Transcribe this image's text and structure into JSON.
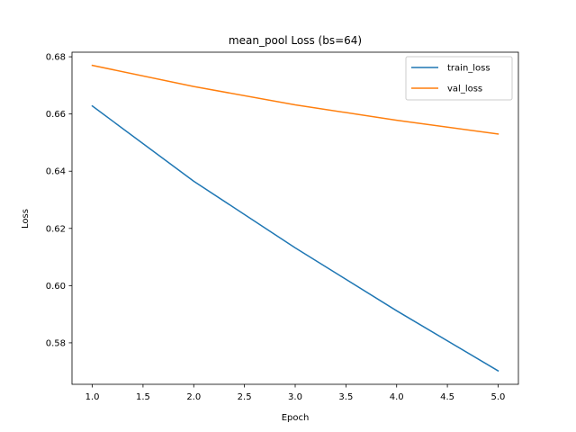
{
  "chart_data": {
    "type": "line",
    "title": "mean_pool Loss (bs=64)",
    "xlabel": "Epoch",
    "ylabel": "Loss",
    "x": [
      1,
      2,
      3,
      4,
      5
    ],
    "series": [
      {
        "name": "train_loss",
        "color": "#1f77b4",
        "values": [
          0.6628,
          0.6365,
          0.6132,
          0.5912,
          0.5702
        ]
      },
      {
        "name": "val_loss",
        "color": "#ff7f0e",
        "values": [
          0.677,
          0.6696,
          0.6632,
          0.6578,
          0.653
        ]
      }
    ],
    "xlim": [
      0.8,
      5.2
    ],
    "ylim": [
      0.5655,
      0.6816
    ],
    "xticks": [
      1.0,
      1.5,
      2.0,
      2.5,
      3.0,
      3.5,
      4.0,
      4.5,
      5.0
    ],
    "xtick_labels": [
      "1.0",
      "1.5",
      "2.0",
      "2.5",
      "3.0",
      "3.5",
      "4.0",
      "4.5",
      "5.0"
    ],
    "yticks": [
      0.58,
      0.6,
      0.62,
      0.64,
      0.66,
      0.68
    ],
    "ytick_labels": [
      "0.58",
      "0.60",
      "0.62",
      "0.64",
      "0.66",
      "0.68"
    ],
    "grid": false,
    "legend_position": "top-right"
  }
}
